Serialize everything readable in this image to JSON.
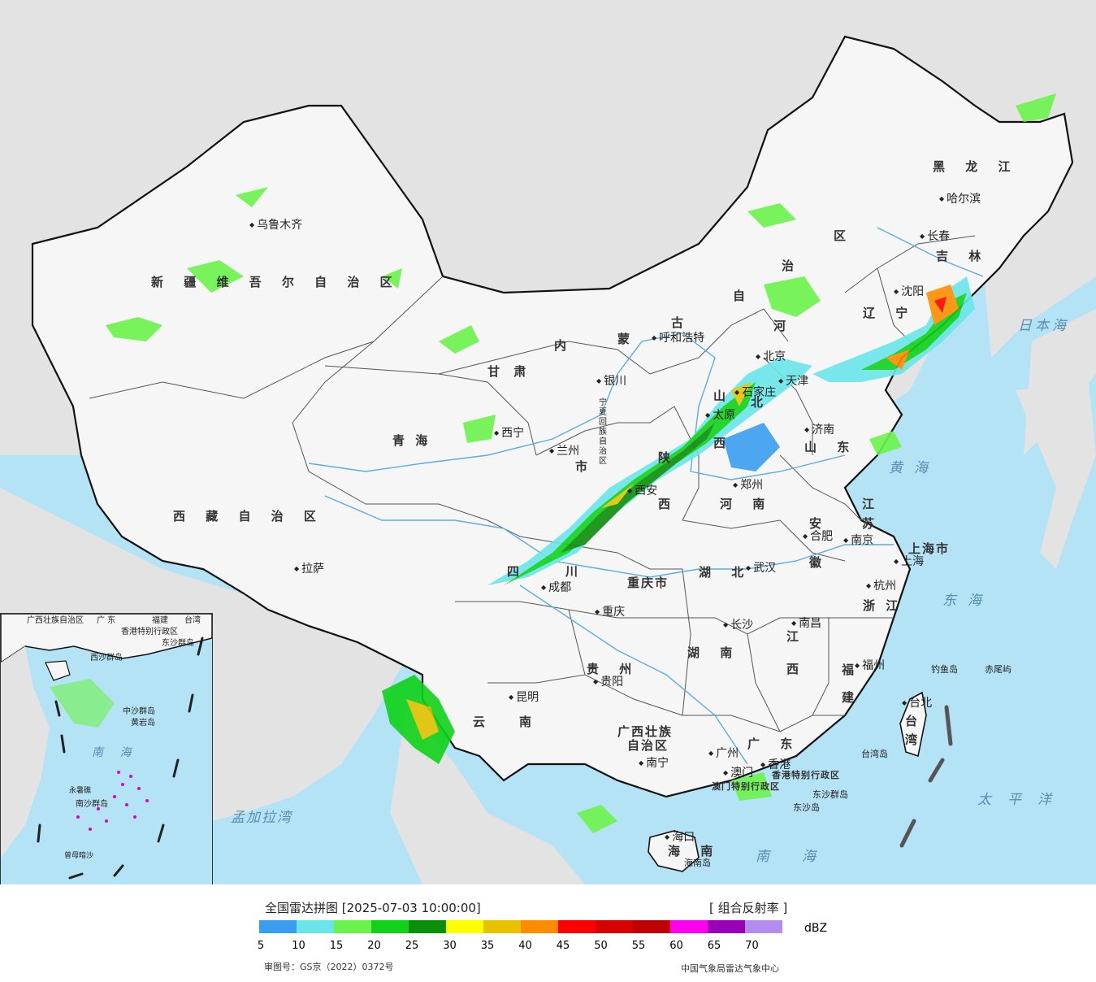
{
  "legend": {
    "title": "全国雷达拼图 [2025-07-03 10:00:00]",
    "product": "[ 组合反射率 ]",
    "unit": "dBZ",
    "colors": [
      "#3a9ef0",
      "#6ae6ea",
      "#6cf34b",
      "#10d219",
      "#0a8f0a",
      "#ffff00",
      "#e6c200",
      "#ff8c00",
      "#ff0000",
      "#d90000",
      "#c00000",
      "#ff00f0",
      "#9a00b6",
      "#b38cee"
    ],
    "ticks": [
      "5",
      "10",
      "15",
      "20",
      "25",
      "30",
      "35",
      "40",
      "45",
      "50",
      "55",
      "60",
      "65",
      "70"
    ],
    "review_number": "审图号：GS京（2022）0372号",
    "credit": "中国气象局雷达气象中心"
  },
  "map": {
    "provinces": [
      {
        "id": "xinjiang",
        "text": "新 疆 维 吾 尔 自 治 区"
      },
      {
        "id": "xizang",
        "text": "西 藏 自 治 区"
      },
      {
        "id": "qinghai",
        "text": "青     海"
      },
      {
        "id": "gansu",
        "text": "甘  肃"
      },
      {
        "id": "neimeng1",
        "text": "内"
      },
      {
        "id": "neimeng2",
        "text": "蒙"
      },
      {
        "id": "neimeng3",
        "text": "古"
      },
      {
        "id": "neimeng4",
        "text": "自"
      },
      {
        "id": "neimeng5",
        "text": "治"
      },
      {
        "id": "neimeng6",
        "text": "区"
      },
      {
        "id": "heilongjiang",
        "text": "黑 龙 江"
      },
      {
        "id": "jilin",
        "text": "吉 林"
      },
      {
        "id": "liaoning",
        "text": "辽 宁"
      },
      {
        "id": "hebei1",
        "text": "河"
      },
      {
        "id": "hebei2",
        "text": "北"
      },
      {
        "id": "shanxi1",
        "text": "山"
      },
      {
        "id": "shanxi2",
        "text": "西"
      },
      {
        "id": "shandong",
        "text": "山 东"
      },
      {
        "id": "henan",
        "text": "河 南"
      },
      {
        "id": "shaanxi1",
        "text": "陕"
      },
      {
        "id": "shaanxi2",
        "text": "西"
      },
      {
        "id": "sichuan1",
        "text": "四"
      },
      {
        "id": "sichuan2",
        "text": "川"
      },
      {
        "id": "chongqing",
        "text": "重庆市"
      },
      {
        "id": "hubei",
        "text": "湖 北"
      },
      {
        "id": "hunan",
        "text": "湖 南"
      },
      {
        "id": "anhui1",
        "text": "安"
      },
      {
        "id": "anhui2",
        "text": "徽"
      },
      {
        "id": "jiangsu1",
        "text": "江"
      },
      {
        "id": "jiangsu2",
        "text": "苏"
      },
      {
        "id": "zhejiang",
        "text": "浙 江"
      },
      {
        "id": "jiangxi1",
        "text": "江"
      },
      {
        "id": "jiangxi2",
        "text": "西"
      },
      {
        "id": "fujian1",
        "text": "福"
      },
      {
        "id": "fujian2",
        "text": "建"
      },
      {
        "id": "guizhou",
        "text": "贵 州"
      },
      {
        "id": "yunnan1",
        "text": "云"
      },
      {
        "id": "yunnan2",
        "text": "南"
      },
      {
        "id": "guangxi1",
        "text": "广西壮族"
      },
      {
        "id": "guangxi2",
        "text": "自治区"
      },
      {
        "id": "guangdong",
        "text": "广 东"
      },
      {
        "id": "hainan",
        "text": "海 南"
      },
      {
        "id": "shanghai",
        "text": "上海市"
      },
      {
        "id": "taiwan1",
        "text": "台"
      },
      {
        "id": "taiwan2",
        "text": "湾"
      },
      {
        "id": "gansu2",
        "text": "市"
      },
      {
        "id": "hk",
        "text": "香港特别行政区"
      },
      {
        "id": "macao",
        "text": "澳门特别行政区"
      },
      {
        "id": "ningxia",
        "text": "宁夏回族自治区"
      }
    ],
    "cities": [
      {
        "id": "urumqi",
        "text": "乌鲁木齐"
      },
      {
        "id": "lhasa",
        "text": "拉萨"
      },
      {
        "id": "xining",
        "text": "西宁"
      },
      {
        "id": "lanzhou",
        "text": "兰州"
      },
      {
        "id": "yinchuan",
        "text": "银川"
      },
      {
        "id": "hohhot",
        "text": "呼和浩特"
      },
      {
        "id": "harbin",
        "text": "哈尔滨"
      },
      {
        "id": "changchun",
        "text": "长春"
      },
      {
        "id": "shenyang",
        "text": "沈阳"
      },
      {
        "id": "beijing",
        "text": "北京"
      },
      {
        "id": "tianjin",
        "text": "天津"
      },
      {
        "id": "shijiazhuang",
        "text": "石家庄"
      },
      {
        "id": "taiyuan",
        "text": "太原"
      },
      {
        "id": "jinan",
        "text": "济南"
      },
      {
        "id": "zhengzhou",
        "text": "郑州"
      },
      {
        "id": "xian",
        "text": "西安"
      },
      {
        "id": "chengdu",
        "text": "成都"
      },
      {
        "id": "chongqing_c",
        "text": "重庆"
      },
      {
        "id": "wuhan",
        "text": "武汉"
      },
      {
        "id": "hefei",
        "text": "合肥"
      },
      {
        "id": "nanjing",
        "text": "南京"
      },
      {
        "id": "shanghai_c",
        "text": "上海"
      },
      {
        "id": "hangzhou",
        "text": "杭州"
      },
      {
        "id": "changsha",
        "text": "长沙"
      },
      {
        "id": "nanchang",
        "text": "南昌"
      },
      {
        "id": "fuzhou",
        "text": "福州"
      },
      {
        "id": "guiyang",
        "text": "贵阳"
      },
      {
        "id": "kunming",
        "text": "昆明"
      },
      {
        "id": "nanning",
        "text": "南宁"
      },
      {
        "id": "guangzhou",
        "text": "广州"
      },
      {
        "id": "macau_c",
        "text": "澳门"
      },
      {
        "id": "hongkong_c",
        "text": "香港"
      },
      {
        "id": "haikou",
        "text": "海口"
      },
      {
        "id": "taibei",
        "text": "台北"
      }
    ],
    "seas": [
      {
        "id": "japan_sea",
        "text": "日本海"
      },
      {
        "id": "yellow_sea",
        "text": "黄海"
      },
      {
        "id": "east_sea",
        "text": "东海"
      },
      {
        "id": "south_sea",
        "text": "南海"
      },
      {
        "id": "pacific",
        "text": "太平洋"
      },
      {
        "id": "bengal",
        "text": "孟加拉湾"
      }
    ],
    "islands": [
      {
        "id": "diaoyu",
        "text": "钓鱼岛"
      },
      {
        "id": "chiwei",
        "text": "赤尾屿"
      },
      {
        "id": "taiwan_island",
        "text": "台湾岛"
      },
      {
        "id": "dongsha",
        "text": "东沙群岛"
      },
      {
        "id": "dongsha2",
        "text": "东沙岛"
      },
      {
        "id": "hainan_island",
        "text": "海南岛"
      }
    ],
    "inset": {
      "labels": [
        {
          "id": "i_guangxi",
          "text": "广西壮族自治区"
        },
        {
          "id": "i_guangdong",
          "text": "广 东"
        },
        {
          "id": "i_fujian",
          "text": "福建"
        },
        {
          "id": "i_taiwan",
          "text": "台湾"
        },
        {
          "id": "i_hk",
          "text": "香港特别行政区"
        },
        {
          "id": "i_dongsha",
          "text": "东沙群岛"
        },
        {
          "id": "i_xisha",
          "text": "西沙群岛"
        },
        {
          "id": "i_zhongsha",
          "text": "中沙群岛"
        },
        {
          "id": "i_huangyan",
          "text": "黄岩岛"
        },
        {
          "id": "i_nanhai",
          "text": "南 海"
        },
        {
          "id": "i_nansha",
          "text": "南沙群岛"
        },
        {
          "id": "i_yongshu",
          "text": "永暑礁"
        },
        {
          "id": "i_zengmu",
          "text": "曾母暗沙"
        }
      ]
    }
  }
}
